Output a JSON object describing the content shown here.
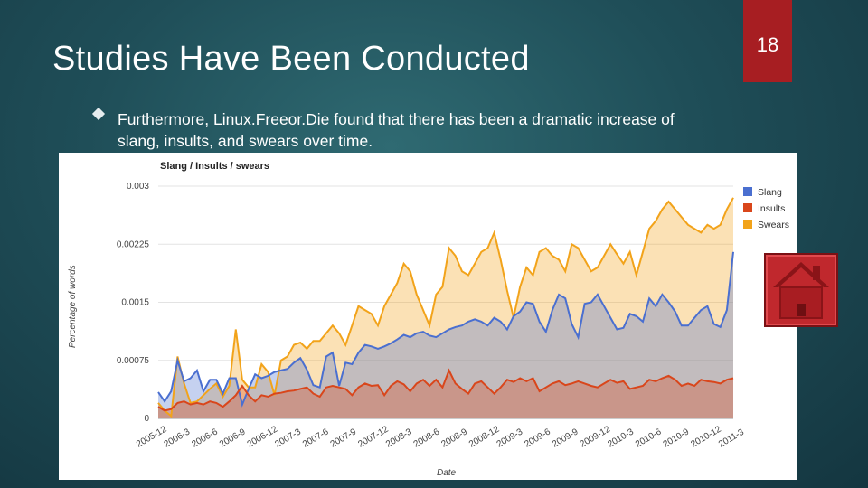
{
  "slide": {
    "title": "Studies Have Been Conducted",
    "page_number": "18",
    "bullet": "Furthermore, Linux.Freeor.Die found that there has been a dramatic increase of slang, insults, and swears over time."
  },
  "colors": {
    "slang": "#4a6fd0",
    "insults": "#d9461b",
    "swears": "#f2a31a",
    "badge": "#a71e22",
    "home_button": "#c0282d"
  },
  "icons": {
    "bullet": "diamond-bullet-icon",
    "home": "home-icon"
  },
  "chart_data": {
    "type": "area",
    "stacked": false,
    "title": "Slang / Insults / swears",
    "xlabel": "Date",
    "ylabel": "Percentage of words",
    "ylim": [
      0,
      0.003
    ],
    "yticks": [
      "0",
      "0.00075",
      "0.0015",
      "0.00225",
      "0.003"
    ],
    "x_ticks": [
      "2005-12",
      "2006-3",
      "2006-6",
      "2006-9",
      "2006-12",
      "2007-3",
      "2007-6",
      "2007-9",
      "2007-12",
      "2008-3",
      "2008-6",
      "2008-9",
      "2008-12",
      "2009-3",
      "2009-6",
      "2009-9",
      "2009-12",
      "2010-3",
      "2010-6",
      "2010-9",
      "2010-12",
      "2011-3"
    ],
    "legend_position": "right",
    "grid": true,
    "series": [
      {
        "name": "Slang",
        "color": "#4a6fd0",
        "values": [
          0.00034,
          0.00022,
          0.00035,
          0.00075,
          0.00048,
          0.00052,
          0.00062,
          0.00035,
          0.0005,
          0.0005,
          0.00032,
          0.00052,
          0.00052,
          0.00018,
          0.00038,
          0.00057,
          0.00052,
          0.00055,
          0.0006,
          0.00062,
          0.00064,
          0.00072,
          0.00078,
          0.00063,
          0.00043,
          0.0004,
          0.0008,
          0.00085,
          0.00042,
          0.00072,
          0.0007,
          0.00085,
          0.00095,
          0.00093,
          0.0009,
          0.00093,
          0.00097,
          0.00102,
          0.00108,
          0.00105,
          0.0011,
          0.00112,
          0.00107,
          0.00105,
          0.0011,
          0.00115,
          0.00118,
          0.0012,
          0.00125,
          0.00128,
          0.00125,
          0.0012,
          0.0013,
          0.00125,
          0.00115,
          0.00132,
          0.00138,
          0.0015,
          0.00148,
          0.00125,
          0.00112,
          0.0014,
          0.0016,
          0.00155,
          0.00122,
          0.00105,
          0.00148,
          0.0015,
          0.0016,
          0.00145,
          0.0013,
          0.00115,
          0.00117,
          0.00135,
          0.00132,
          0.00125,
          0.00155,
          0.00145,
          0.0016,
          0.0015,
          0.00138,
          0.0012,
          0.0012,
          0.0013,
          0.0014,
          0.00145,
          0.00122,
          0.00118,
          0.0014,
          0.00215
        ]
      },
      {
        "name": "Insults",
        "color": "#d9461b",
        "values": [
          0.00015,
          0.0001,
          0.00012,
          0.0002,
          0.00022,
          0.00018,
          0.0002,
          0.00018,
          0.00022,
          0.0002,
          0.00015,
          0.00022,
          0.0003,
          0.00042,
          0.0003,
          0.00022,
          0.0003,
          0.00028,
          0.00032,
          0.00033,
          0.00035,
          0.00036,
          0.00038,
          0.0004,
          0.00032,
          0.00028,
          0.0004,
          0.00042,
          0.0004,
          0.00038,
          0.0003,
          0.0004,
          0.00045,
          0.00042,
          0.00043,
          0.0003,
          0.00042,
          0.00048,
          0.00044,
          0.00035,
          0.00045,
          0.0005,
          0.00042,
          0.0005,
          0.0004,
          0.00062,
          0.00045,
          0.00038,
          0.00032,
          0.00045,
          0.00048,
          0.0004,
          0.00032,
          0.0004,
          0.0005,
          0.00047,
          0.00052,
          0.00048,
          0.00052,
          0.00035,
          0.0004,
          0.00045,
          0.00048,
          0.00043,
          0.00045,
          0.00048,
          0.00045,
          0.00042,
          0.0004,
          0.00045,
          0.0005,
          0.00046,
          0.00048,
          0.00038,
          0.0004,
          0.00042,
          0.0005,
          0.00048,
          0.00052,
          0.00055,
          0.0005,
          0.00042,
          0.00045,
          0.00042,
          0.0005,
          0.00048,
          0.00047,
          0.00045,
          0.0005,
          0.00052
        ]
      },
      {
        "name": "Swears",
        "color": "#f2a31a",
        "values": [
          0.0002,
          0.0001,
          3e-05,
          0.0008,
          0.00045,
          0.0002,
          0.00022,
          0.0003,
          0.00038,
          0.00045,
          0.00028,
          0.00042,
          0.00115,
          0.0005,
          0.0004,
          0.0004,
          0.0007,
          0.0006,
          0.0003,
          0.00075,
          0.0008,
          0.00095,
          0.00098,
          0.0009,
          0.001,
          0.001,
          0.0011,
          0.0012,
          0.0011,
          0.00095,
          0.0012,
          0.00145,
          0.0014,
          0.00135,
          0.0012,
          0.00145,
          0.0016,
          0.00175,
          0.002,
          0.0019,
          0.0016,
          0.0014,
          0.0012,
          0.0016,
          0.0017,
          0.0022,
          0.0021,
          0.0019,
          0.00185,
          0.002,
          0.00215,
          0.0022,
          0.0024,
          0.00205,
          0.00165,
          0.0013,
          0.0017,
          0.00195,
          0.00185,
          0.00215,
          0.0022,
          0.0021,
          0.00205,
          0.0019,
          0.00225,
          0.0022,
          0.00205,
          0.0019,
          0.00195,
          0.0021,
          0.00225,
          0.00212,
          0.002,
          0.00215,
          0.00185,
          0.00215,
          0.00245,
          0.00255,
          0.0027,
          0.0028,
          0.0027,
          0.0026,
          0.0025,
          0.00245,
          0.0024,
          0.0025,
          0.00245,
          0.0025,
          0.0027,
          0.00285
        ]
      }
    ]
  }
}
